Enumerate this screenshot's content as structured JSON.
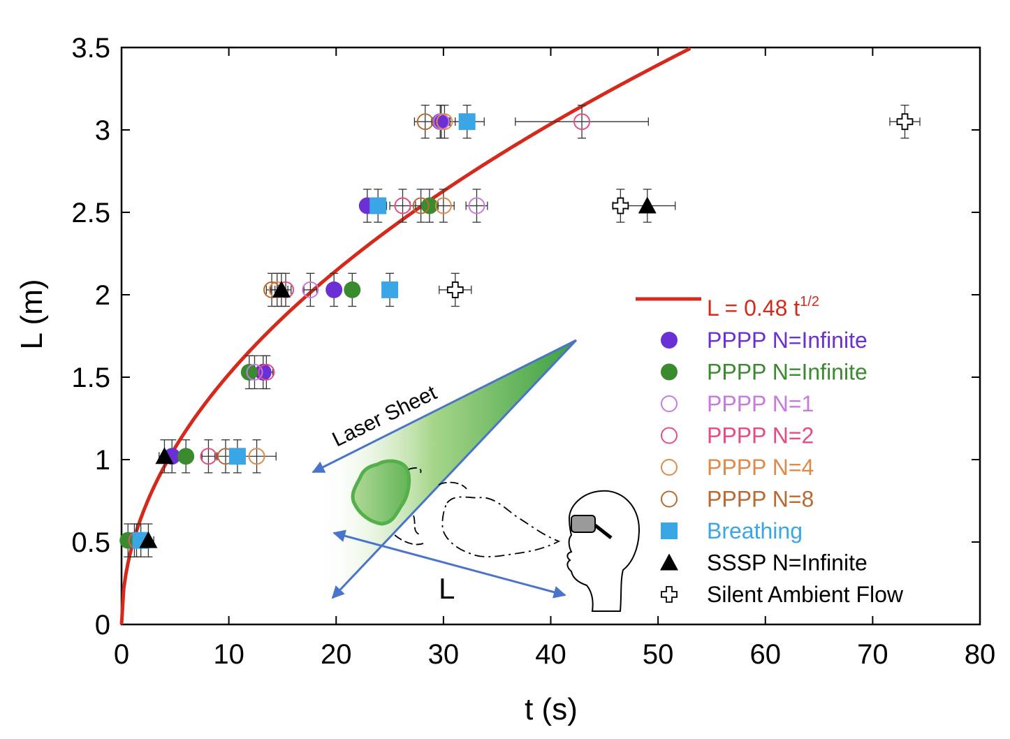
{
  "chart_data": {
    "type": "scatter",
    "title": "",
    "xlabel": "t (s)",
    "ylabel": "L (m)",
    "xlim": [
      0,
      80
    ],
    "ylim": [
      0,
      3.5
    ],
    "x_ticks": [
      0,
      10,
      20,
      30,
      40,
      50,
      60,
      70,
      80
    ],
    "y_ticks": [
      0,
      0.5,
      1,
      1.5,
      2,
      2.5,
      3,
      3.5
    ],
    "x_tick_labels": [
      "0",
      "10",
      "20",
      "30",
      "40",
      "50",
      "60",
      "70",
      "80"
    ],
    "y_tick_labels": [
      "0",
      "0.5",
      "1",
      "1.5",
      "2",
      "2.5",
      "3",
      "3.5"
    ],
    "fit": {
      "label_main": "L = 0.48 t",
      "label_sup": "1/2",
      "coef": 0.48,
      "power": 0.5,
      "color": "#d4291b"
    },
    "series": [
      {
        "name": "PPPP N=Infinite",
        "marker": "circle-filled",
        "color": "#6a30d6",
        "points": [
          {
            "x": 1.2,
            "y": 0.51,
            "xerr": 0.4
          },
          {
            "x": 4.7,
            "y": 1.02,
            "xerr": 0.5
          },
          {
            "x": 13.2,
            "y": 1.53,
            "xerr": 0.6
          },
          {
            "x": 19.8,
            "y": 2.03,
            "xerr": 0.6
          },
          {
            "x": 22.9,
            "y": 2.54,
            "xerr": 0.6
          },
          {
            "x": 29.7,
            "y": 3.05,
            "xerr": 0.8
          }
        ]
      },
      {
        "name": "PPPP N=Infinite",
        "marker": "circle-filled",
        "color": "#3a8a2e",
        "points": [
          {
            "x": 0.6,
            "y": 0.51,
            "xerr": 0.4
          },
          {
            "x": 6.0,
            "y": 1.02,
            "xerr": 0.5
          },
          {
            "x": 11.9,
            "y": 1.53,
            "xerr": 0.6
          },
          {
            "x": 21.5,
            "y": 2.03,
            "xerr": 0.6
          },
          {
            "x": 28.7,
            "y": 2.54,
            "xerr": 0.8
          }
        ]
      },
      {
        "name": "PPPP N=1",
        "marker": "circle-open",
        "color": "#c77be0",
        "points": [
          {
            "x": 12.4,
            "y": 1.53,
            "xerr": 0.6
          },
          {
            "x": 17.6,
            "y": 2.03,
            "xerr": 0.6
          },
          {
            "x": 33.1,
            "y": 2.54,
            "xerr": 1.0
          },
          {
            "x": 29.8,
            "y": 3.05,
            "xerr": 0.8
          }
        ]
      },
      {
        "name": "PPPP N=2",
        "marker": "circle-open",
        "color": "#e64d7e",
        "points": [
          {
            "x": 1.4,
            "y": 0.51,
            "xerr": 0.4
          },
          {
            "x": 8.1,
            "y": 1.02,
            "xerr": 0.6
          },
          {
            "x": 13.5,
            "y": 1.53,
            "xerr": 0.6
          },
          {
            "x": 15.3,
            "y": 2.03,
            "xerr": 0.5
          },
          {
            "x": 26.2,
            "y": 2.54,
            "xerr": 1.2
          },
          {
            "x": 42.9,
            "y": 3.05,
            "xerr": 6.2
          }
        ]
      },
      {
        "name": "PPPP N=4",
        "marker": "circle-open",
        "color": "#e08a4a",
        "points": [
          {
            "x": 12.6,
            "y": 1.02,
            "xerr": 1.8
          },
          {
            "x": 14.5,
            "y": 2.03,
            "xerr": 0.6
          },
          {
            "x": 30.0,
            "y": 2.54,
            "xerr": 1.0
          },
          {
            "x": 30.1,
            "y": 3.05,
            "xerr": 1.0
          }
        ]
      },
      {
        "name": "PPPP N=8",
        "marker": "circle-open",
        "color": "#b86a32",
        "points": [
          {
            "x": 9.7,
            "y": 1.02,
            "xerr": 0.8
          },
          {
            "x": 14.0,
            "y": 2.03,
            "xerr": 0.5
          },
          {
            "x": 27.9,
            "y": 2.54,
            "xerr": 1.0
          },
          {
            "x": 28.3,
            "y": 3.05,
            "xerr": 1.0
          }
        ]
      },
      {
        "name": "Breathing",
        "marker": "square-filled",
        "color": "#3ba6e6",
        "points": [
          {
            "x": 1.8,
            "y": 0.51,
            "xerr": 0.4
          },
          {
            "x": 10.8,
            "y": 1.02,
            "xerr": 0.6
          },
          {
            "x": 25.0,
            "y": 2.03,
            "xerr": 0.6
          },
          {
            "x": 23.9,
            "y": 2.54,
            "xerr": 0.8
          },
          {
            "x": 32.2,
            "y": 3.05,
            "xerr": 1.6
          }
        ]
      },
      {
        "name": "SSSP N=Infinite",
        "marker": "triangle-filled",
        "color": "#000000",
        "points": [
          {
            "x": 2.5,
            "y": 0.51,
            "xerr": 0.5
          },
          {
            "x": 4.0,
            "y": 1.02,
            "xerr": 0.5
          },
          {
            "x": 14.9,
            "y": 2.03,
            "xerr": 0.6
          },
          {
            "x": 49.0,
            "y": 2.54,
            "xerr": 2.6
          }
        ]
      },
      {
        "name": "Silent Ambient Flow",
        "marker": "cross-open",
        "color": "#000000",
        "points": [
          {
            "x": 31.1,
            "y": 2.03,
            "xerr": 1.5
          },
          {
            "x": 46.5,
            "y": 2.54,
            "xerr": 0.7
          },
          {
            "x": 73.0,
            "y": 3.05,
            "xerr": 1.4
          }
        ]
      }
    ],
    "legend_position": "right"
  },
  "annotations": {
    "laser_sheet": "Laser Sheet",
    "distance": "L"
  },
  "colors": {
    "axis": "#000000",
    "errorbar": "#333333",
    "arrow": "#4a74c9",
    "sheet_green": "#4aa83f"
  }
}
